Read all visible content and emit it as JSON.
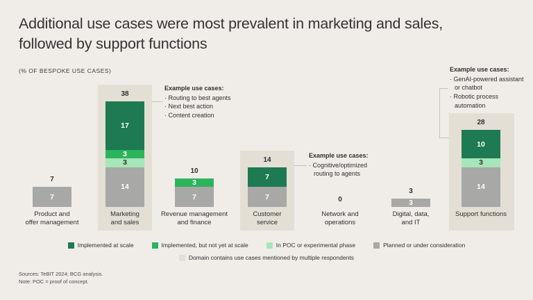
{
  "title_line1": "Additional use cases were most prevalent in marketing and sales,",
  "title_line2": "followed by support functions",
  "subtitle": "(% OF BESPOKE USE CASES)",
  "colors": {
    "dark_green": "#1e7a52",
    "mid_green": "#2cb45c",
    "light_green": "#a6e6b8",
    "gray": "#a8a8a6",
    "beige": "#e3dfd5",
    "background": "#f0ede9"
  },
  "chart_data": {
    "type": "bar",
    "stacked": true,
    "title": "Additional use cases were most prevalent in marketing and sales, followed by support functions",
    "subtitle": "(% OF BESPOKE USE CASES)",
    "xlabel": "",
    "ylabel": "% of bespoke use cases",
    "grid": false,
    "legend_position": "bottom",
    "categories": [
      "Product and offer management",
      "Marketing and sales",
      "Revenue management and finance",
      "Customer service",
      "Network and operations",
      "Digital, data, and IT",
      "Support functions"
    ],
    "categories_display": [
      "Product and\noffer management",
      "Marketing\nand sales",
      "Revenue management\nand finance",
      "Customer\nservice",
      "Network and\noperations",
      "Digital, data,\nand IT",
      "Support functions"
    ],
    "series": [
      {
        "name": "Implemented at scale",
        "color_key": "dark_green",
        "values": [
          0,
          17,
          0,
          7,
          0,
          0,
          10
        ]
      },
      {
        "name": "Implemented, but not yet at scale",
        "color_key": "mid_green",
        "values": [
          0,
          3,
          3,
          0,
          0,
          0,
          0
        ]
      },
      {
        "name": "In POC or experimental phase",
        "color_key": "light_green",
        "values": [
          0,
          3,
          0,
          0,
          0,
          0,
          3
        ]
      },
      {
        "name": "Planned or under consideration",
        "color_key": "gray",
        "values": [
          7,
          14,
          7,
          7,
          0,
          3,
          14
        ]
      }
    ],
    "totals": [
      7,
      38,
      10,
      14,
      0,
      3,
      28
    ],
    "highlighted": [
      false,
      true,
      false,
      true,
      false,
      false,
      true
    ]
  },
  "callouts": {
    "marketing": {
      "title": "Example use cases:",
      "items": [
        "· Routing to best agents",
        "· Next best action",
        "· Content creation"
      ]
    },
    "customer_service": {
      "title": "Example use cases:",
      "items": [
        "· Cognitive/optimized routing to agents"
      ]
    },
    "support_functions": {
      "title": "Example use cases:",
      "items": [
        "· GenAI-powered assistant or chatbot",
        "· Robotic process automation"
      ]
    }
  },
  "legend": {
    "row1": [
      {
        "label": "Implemented at scale",
        "color_key": "dark_green"
      },
      {
        "label": "Implemented, but not yet at scale",
        "color_key": "mid_green"
      },
      {
        "label": "In POC or experimental phase",
        "color_key": "light_green"
      },
      {
        "label": "Planned or under consideration",
        "color_key": "gray"
      }
    ],
    "row2": [
      {
        "label": "Domain contains use cases mentioned by multiple respondents",
        "color_key": "beige"
      }
    ]
  },
  "footer": {
    "sources": "Sources: TeBIT 2024; BCG analysis.",
    "note": "Note: POC = proof of concept."
  }
}
